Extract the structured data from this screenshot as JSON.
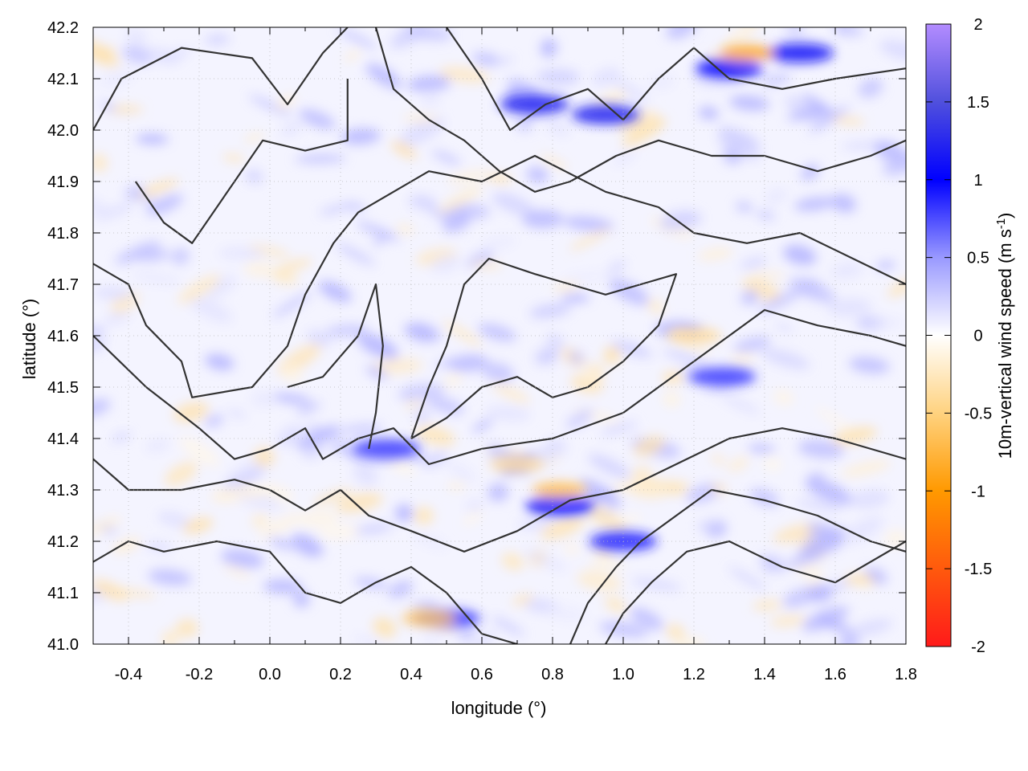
{
  "chart_data": {
    "type": "heatmap",
    "title": "",
    "xlabel": "longitude (°)",
    "ylabel": "latitude (°)",
    "colorbar_label_main": "10m-vertical wind speed (m s",
    "colorbar_label_sup": "-1",
    "colorbar_label_close": ")",
    "xlim": [
      -0.5,
      1.8
    ],
    "ylim": [
      41.0,
      42.2
    ],
    "clim": [
      -2,
      2
    ],
    "grid": true,
    "x_ticks": [
      {
        "value": -0.4,
        "label": "-0.4"
      },
      {
        "value": -0.2,
        "label": "-0.2"
      },
      {
        "value": 0.0,
        "label": "0.0"
      },
      {
        "value": 0.2,
        "label": "0.2"
      },
      {
        "value": 0.4,
        "label": "0.4"
      },
      {
        "value": 0.6,
        "label": "0.6"
      },
      {
        "value": 0.8,
        "label": "0.8"
      },
      {
        "value": 1.0,
        "label": "1.0"
      },
      {
        "value": 1.2,
        "label": "1.2"
      },
      {
        "value": 1.4,
        "label": "1.4"
      },
      {
        "value": 1.6,
        "label": "1.6"
      },
      {
        "value": 1.8,
        "label": "1.8"
      }
    ],
    "y_ticks": [
      {
        "value": 41.0,
        "label": "41.0"
      },
      {
        "value": 41.1,
        "label": "41.1"
      },
      {
        "value": 41.2,
        "label": "41.2"
      },
      {
        "value": 41.3,
        "label": "41.3"
      },
      {
        "value": 41.4,
        "label": "41.4"
      },
      {
        "value": 41.5,
        "label": "41.5"
      },
      {
        "value": 41.6,
        "label": "41.6"
      },
      {
        "value": 41.7,
        "label": "41.7"
      },
      {
        "value": 41.8,
        "label": "41.8"
      },
      {
        "value": 41.9,
        "label": "41.9"
      },
      {
        "value": 42.0,
        "label": "42.0"
      },
      {
        "value": 42.1,
        "label": "42.1"
      },
      {
        "value": 42.2,
        "label": "42.2"
      }
    ],
    "colorbar_ticks": [
      {
        "value": 2,
        "label": "2"
      },
      {
        "value": 1.5,
        "label": "1.5"
      },
      {
        "value": 1,
        "label": "1"
      },
      {
        "value": 0.5,
        "label": "0.5"
      },
      {
        "value": 0,
        "label": "0"
      },
      {
        "value": -0.5,
        "label": "-0.5"
      },
      {
        "value": -1,
        "label": "-1"
      },
      {
        "value": -1.5,
        "label": "-1.5"
      },
      {
        "value": -2,
        "label": "-2"
      }
    ],
    "colorscale": [
      {
        "value": -2,
        "color": "#ff1a1a"
      },
      {
        "value": -1,
        "color": "#ff9900"
      },
      {
        "value": -0.5,
        "color": "#ffd27f"
      },
      {
        "value": 0,
        "color": "#ffffff"
      },
      {
        "value": 0.5,
        "color": "#9999ff"
      },
      {
        "value": 1,
        "color": "#0000ff"
      },
      {
        "value": 1.5,
        "color": "#5050dd"
      },
      {
        "value": 2,
        "color": "#b38cff"
      }
    ],
    "contour_color": "#333333",
    "strong_updraft_regions": [
      {
        "lon": 0.75,
        "lat": 42.05,
        "value": 1.2
      },
      {
        "lon": 0.95,
        "lat": 42.03,
        "value": 1.2
      },
      {
        "lon": 1.5,
        "lat": 42.15,
        "value": 1.1
      },
      {
        "lon": 1.3,
        "lat": 42.12,
        "value": 1.0
      },
      {
        "lon": 0.82,
        "lat": 41.27,
        "value": 1.0
      },
      {
        "lon": 1.0,
        "lat": 41.2,
        "value": 0.9
      },
      {
        "lon": 1.28,
        "lat": 41.52,
        "value": 0.8
      },
      {
        "lon": 0.33,
        "lat": 41.38,
        "value": 0.8
      },
      {
        "lon": 0.5,
        "lat": 41.05,
        "value": 0.8
      }
    ],
    "downdraft_regions": [
      {
        "lon": 1.35,
        "lat": 42.15,
        "value": -0.9
      },
      {
        "lon": 0.82,
        "lat": 41.3,
        "value": -0.7
      },
      {
        "lon": 0.45,
        "lat": 41.05,
        "value": -0.6
      },
      {
        "lon": 1.2,
        "lat": 41.6,
        "value": -0.4
      },
      {
        "lon": 0.7,
        "lat": 41.35,
        "value": -0.4
      }
    ]
  }
}
